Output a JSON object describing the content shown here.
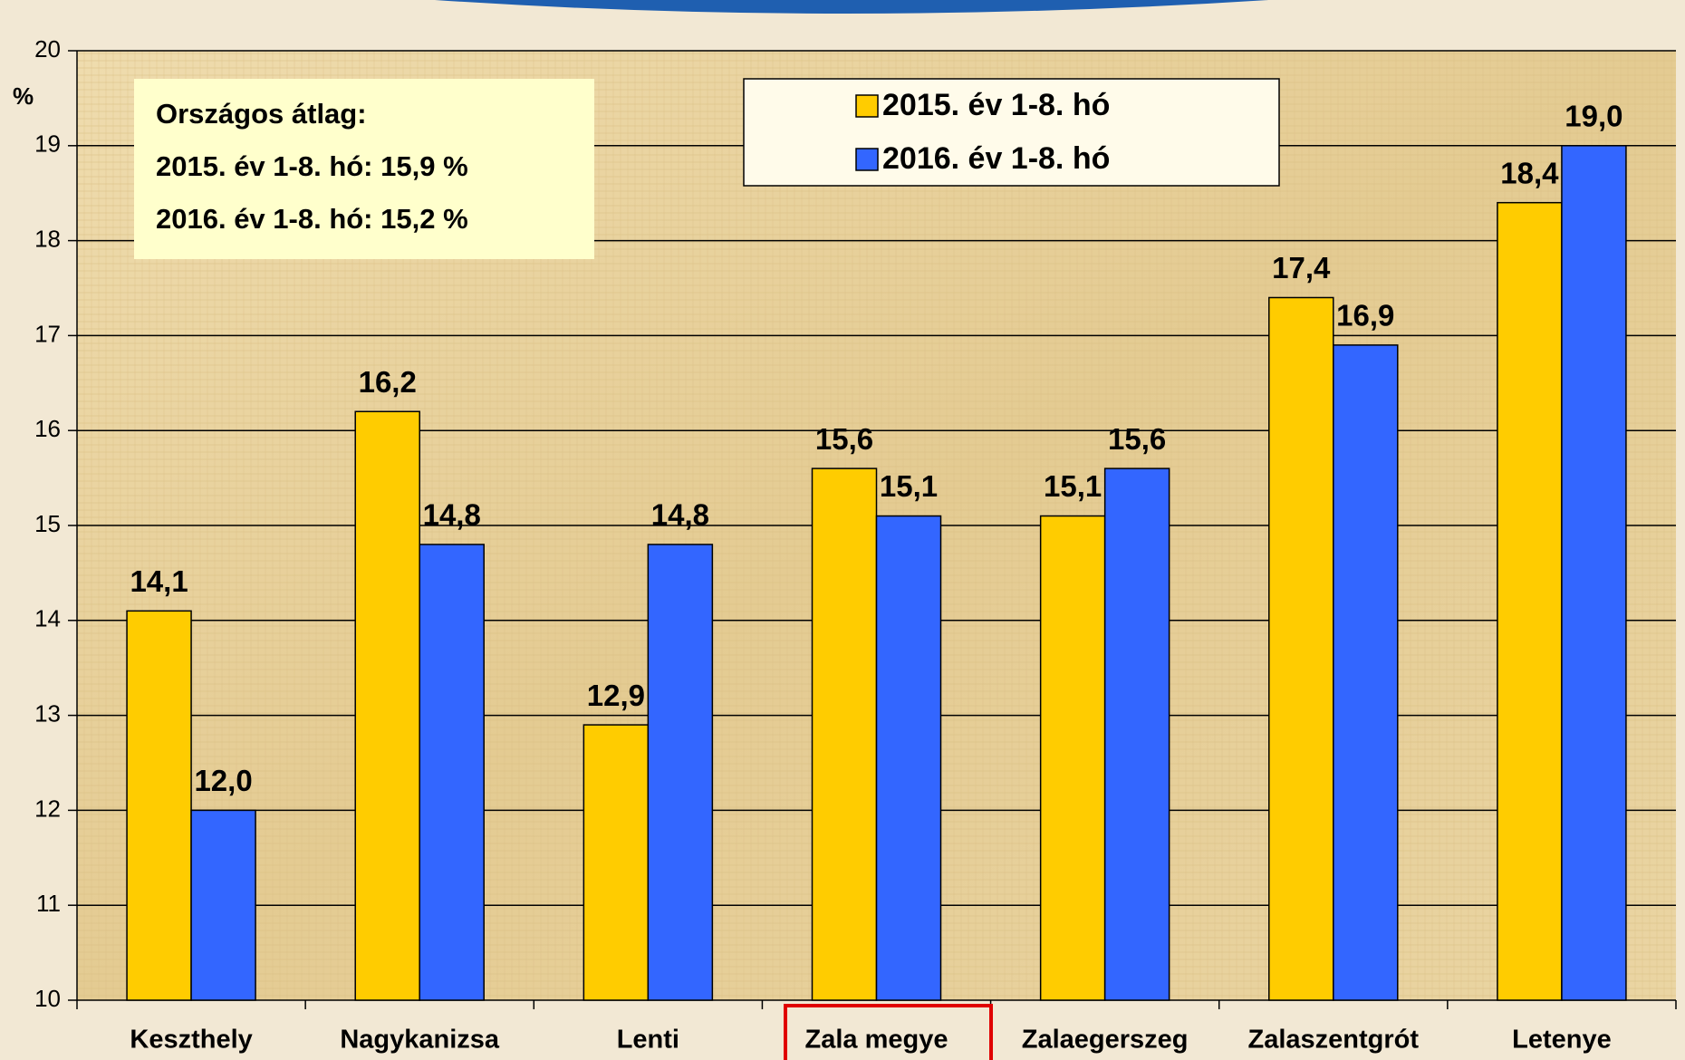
{
  "chart_data": {
    "type": "bar",
    "y_label": "%",
    "annotations": [
      "Országos átlag:",
      "2015. év 1-8. hó: 15,9 %",
      "2016. év 1-8. hó: 15,2 %"
    ],
    "categories": [
      "Keszthely",
      "Nagykanizsa",
      "Lenti",
      "Zala megye",
      "Zalaegerszeg",
      "Zalaszentgrót",
      "Letenye"
    ],
    "series": [
      {
        "name": "2015. év 1-8. hó",
        "color": "#ffcc00",
        "values": [
          14.1,
          16.2,
          12.9,
          15.6,
          15.1,
          17.4,
          18.4
        ],
        "value_labels": [
          "14,1",
          "16,2",
          "12,9",
          "15,6",
          "15,1",
          "17,4",
          "18,4"
        ]
      },
      {
        "name": "2016. év 1-8. hó",
        "color": "#3366ff",
        "values": [
          12.0,
          14.8,
          14.8,
          15.1,
          15.6,
          16.9,
          19.0
        ],
        "value_labels": [
          "12,0",
          "14,8",
          "14,8",
          "15,1",
          "15,6",
          "16,9",
          "19,0"
        ]
      }
    ],
    "ylim": [
      10,
      20
    ],
    "yticks": [
      10,
      11,
      12,
      13,
      14,
      15,
      16,
      17,
      18,
      19,
      20
    ],
    "grid": true
  }
}
